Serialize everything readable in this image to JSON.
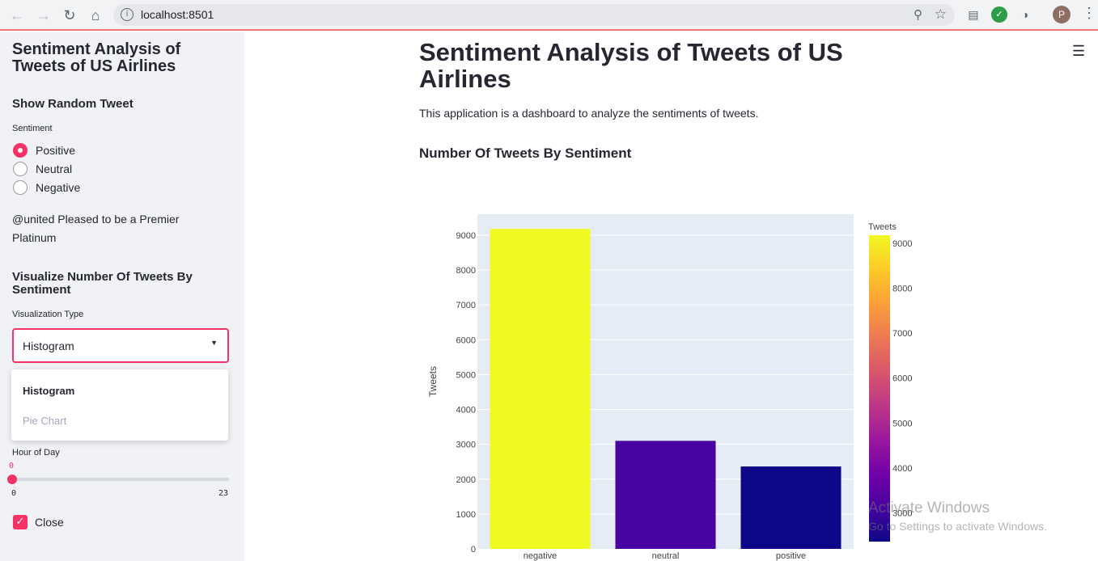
{
  "browser": {
    "url": "localhost:8501",
    "avatar_letter": "P"
  },
  "sidebar": {
    "title": "Sentiment Analysis of Tweets of US Airlines",
    "random_tweet_heading": "Show Random Tweet",
    "sentiment_label": "Sentiment",
    "sentiment_options": [
      "Positive",
      "Neutral",
      "Negative"
    ],
    "sentiment_selected": "Positive",
    "tweet_text": "@united Pleased to be a Premier Platinum",
    "viz_heading": "Visualize Number Of Tweets By Sentiment",
    "viz_type_label": "Visualization Type",
    "viz_type_value": "Histogram",
    "viz_options": [
      "Histogram",
      "Pie Chart"
    ],
    "hour_label": "Hour of Day",
    "hour_value": "0",
    "hour_min": "0",
    "hour_max": "23",
    "close_label": "Close",
    "close_checked": true
  },
  "main": {
    "title": "Sentiment Analysis of Tweets of US Airlines",
    "description": "This application is a dashboard to analyze the sentiments of tweets.",
    "subheading": "Number Of Tweets By Sentiment"
  },
  "chart_data": {
    "type": "bar",
    "categories": [
      "negative",
      "neutral",
      "positive"
    ],
    "values": [
      9178,
      3099,
      2363
    ],
    "ylabel": "Tweets",
    "xlabel": "",
    "ylim": [
      0,
      9600
    ],
    "yticks": [
      0,
      1000,
      2000,
      3000,
      4000,
      5000,
      6000,
      7000,
      8000,
      9000
    ],
    "colorbar": {
      "title": "Tweets",
      "ticks": [
        3000,
        4000,
        5000,
        6000,
        7000,
        8000,
        9000
      ],
      "range": [
        2363,
        9178
      ],
      "colorscale": "plasma"
    },
    "bar_colors": [
      "#f0f921",
      "#4903a0",
      "#0d0887"
    ],
    "plot_background": "#e5ecf6",
    "grid": true
  },
  "watermark": {
    "line1": "Activate Windows",
    "line2": "Go to Settings to activate Windows."
  }
}
